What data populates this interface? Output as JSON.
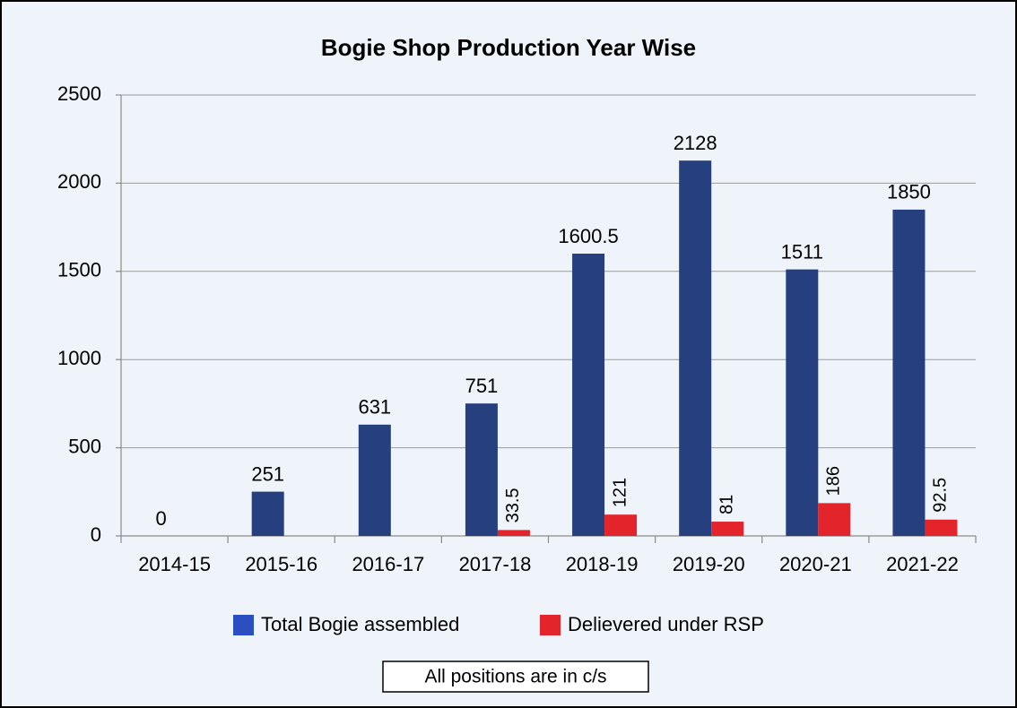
{
  "chart_data": {
    "type": "bar",
    "title": "Bogie Shop Production Year Wise",
    "categories": [
      "2014-15",
      "2015-16",
      "2016-17",
      "2017-18",
      "2018-19",
      "2019-20",
      "2020-21",
      "2021-22"
    ],
    "series": [
      {
        "name": "Total Bogie assembled",
        "color": "#253f7f",
        "values": [
          0,
          251,
          631,
          751,
          1600.5,
          2128,
          1511,
          1850
        ]
      },
      {
        "name": "Delievered under RSP",
        "color": "#e3242b",
        "values": [
          null,
          null,
          null,
          33.5,
          121,
          81,
          186,
          92.5
        ]
      }
    ],
    "ylim": [
      0,
      2500
    ],
    "yticks": [
      0,
      500,
      1000,
      1500,
      2000,
      2500
    ],
    "grid": true,
    "annotation": "All positions are in c/s"
  }
}
